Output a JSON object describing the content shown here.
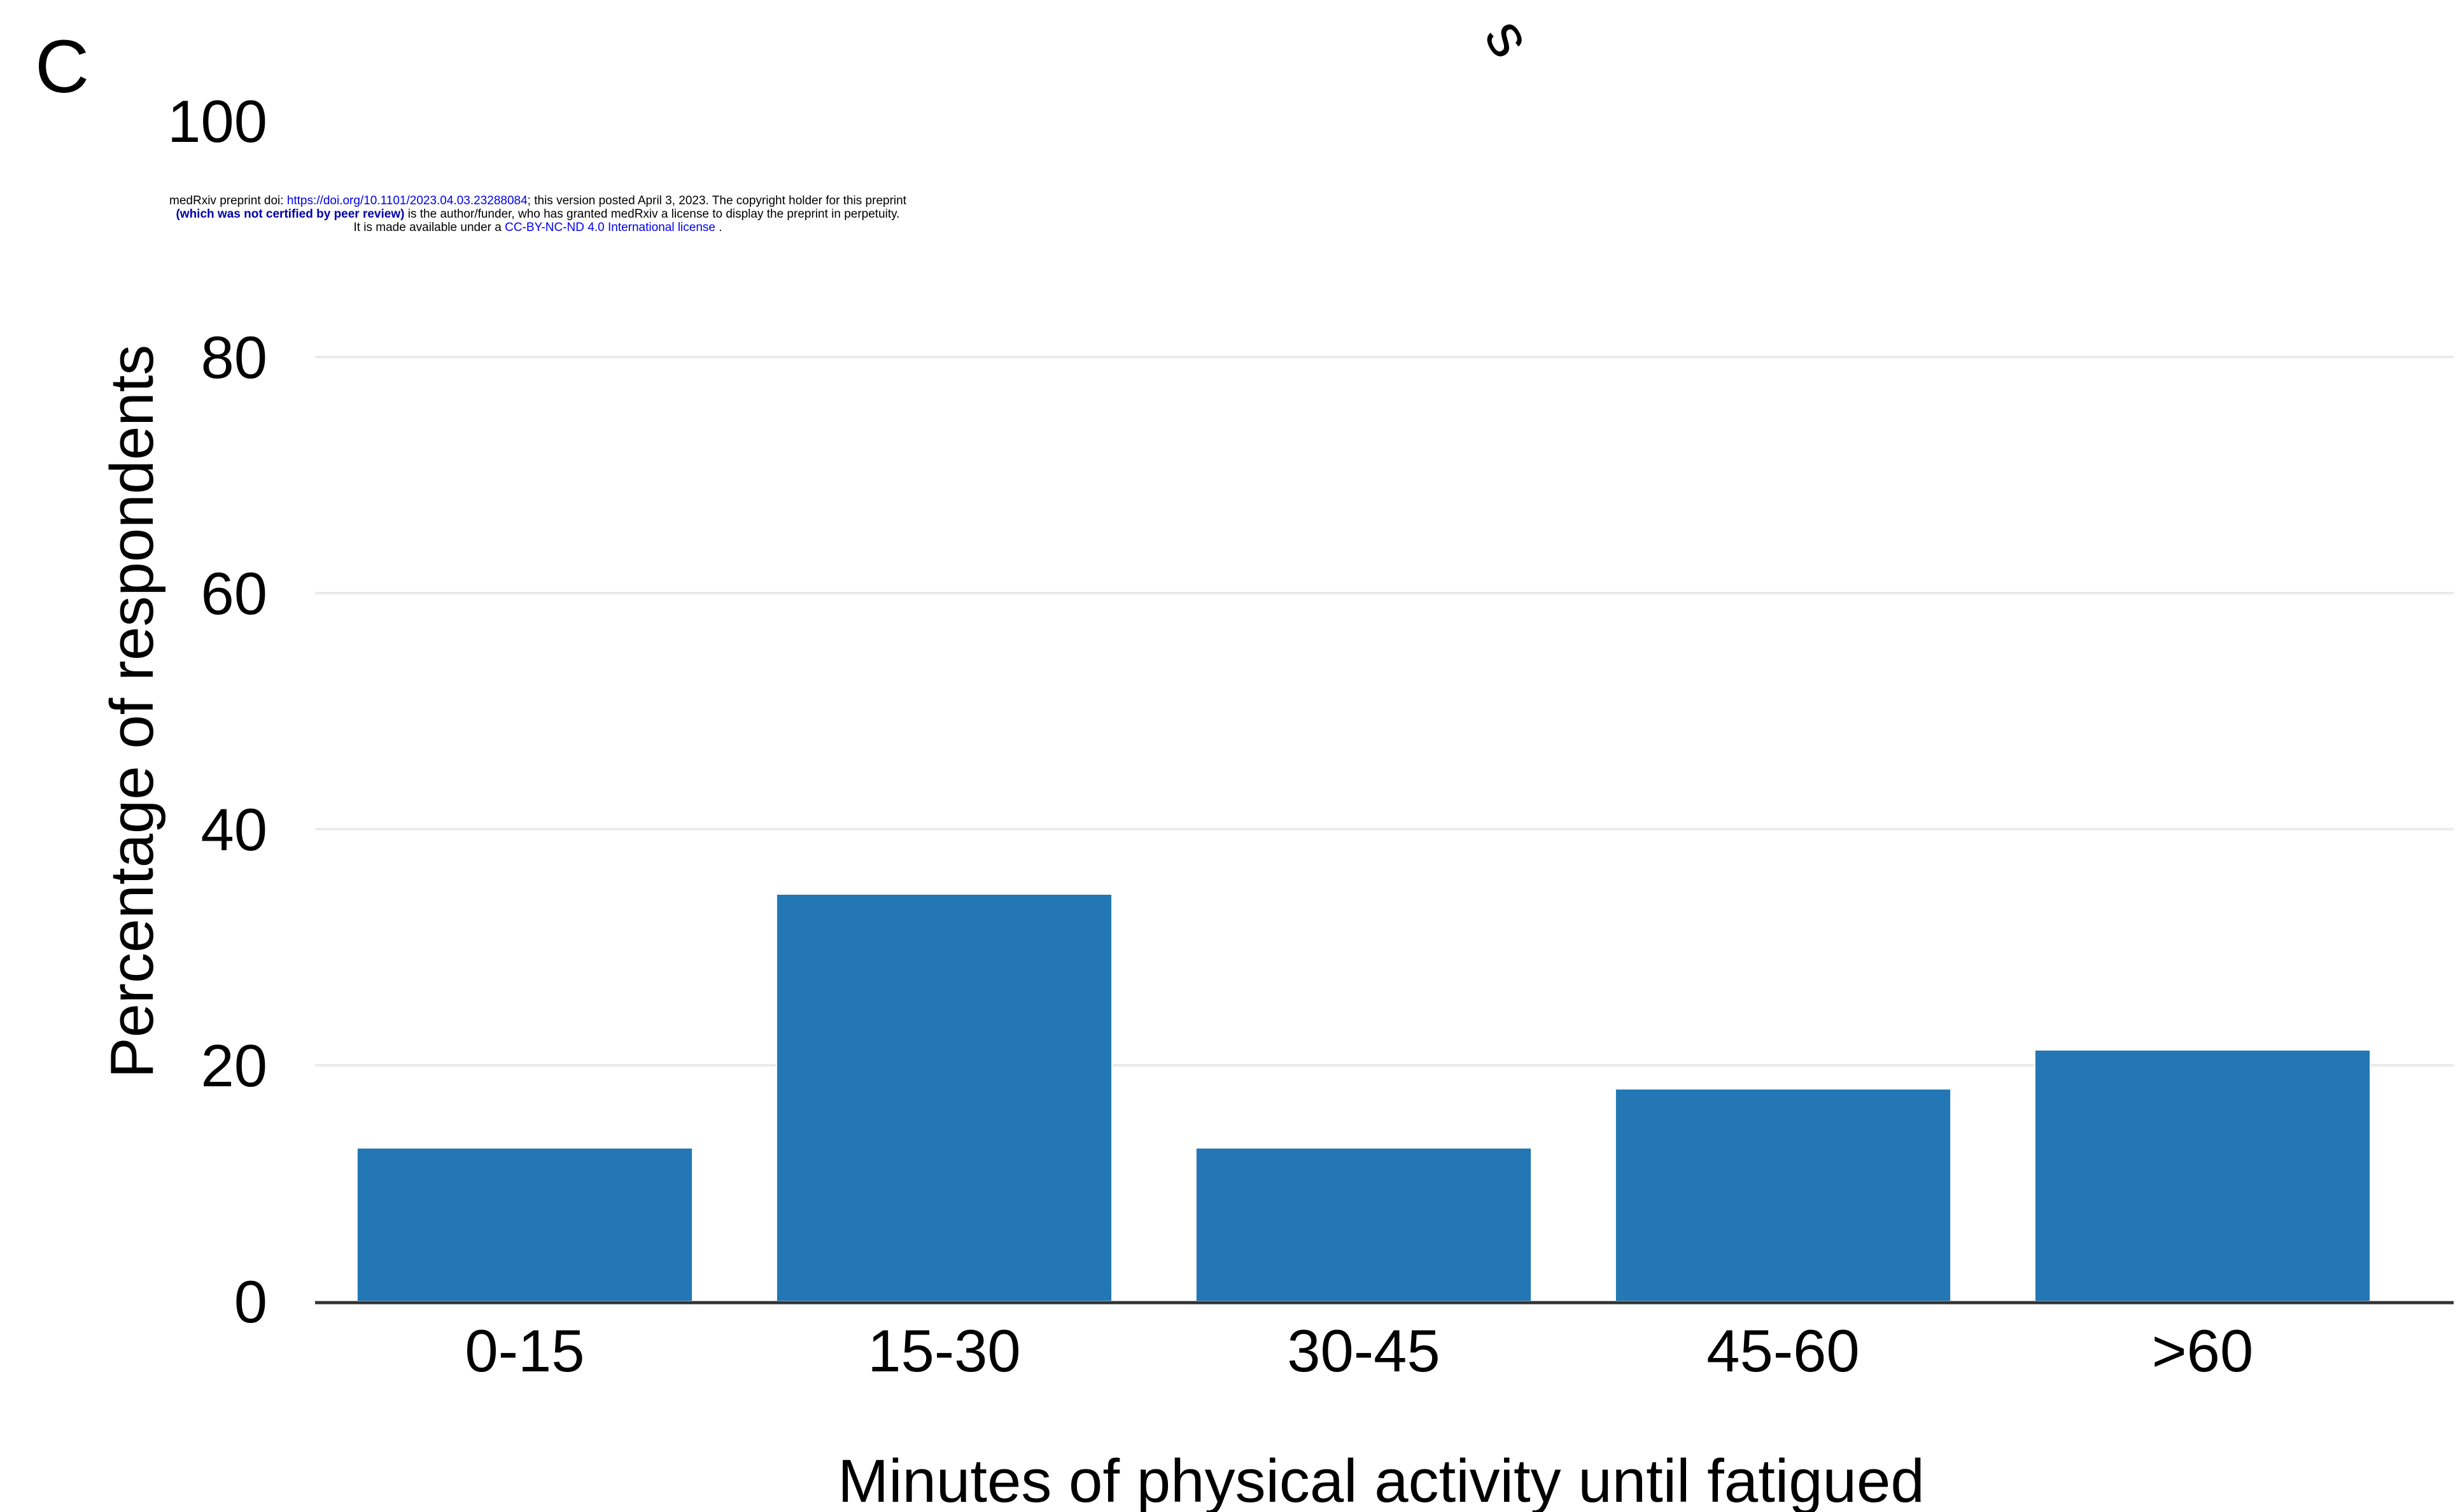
{
  "panel_label": "C",
  "stray_text": "s",
  "preprint_notice": {
    "line1_prefix": "medRxiv preprint doi: ",
    "line1_link": "https://doi.org/10.1101/2023.04.03.23288084",
    "line1_suffix": "; this version posted April 3, 2023. The copyright holder for this preprint",
    "line2_bold": "(which was not certified by peer review)",
    "line2_suffix": " is the author/funder, who has granted medRxiv a license to display the preprint in perpetuity.",
    "line3_prefix": "It is made available under a ",
    "line3_link": "CC-BY-NC-ND 4.0 International license",
    "line3_suffix": " ."
  },
  "colors": {
    "bar": "#2277b4",
    "grid": "#ebebeb",
    "axis": "#333333"
  },
  "chart_data": {
    "type": "bar",
    "categories": [
      "0-15",
      "15-30",
      "30-45",
      "45-60",
      ">60"
    ],
    "values": [
      13,
      34.5,
      13,
      18,
      21.3
    ],
    "xlabel": "Minutes of physical activity until fatigued",
    "ylabel": "Percentage of respondents",
    "ylim": [
      0,
      100
    ],
    "yticks": [
      0,
      20,
      40,
      60,
      80,
      100
    ],
    "grid": true
  }
}
